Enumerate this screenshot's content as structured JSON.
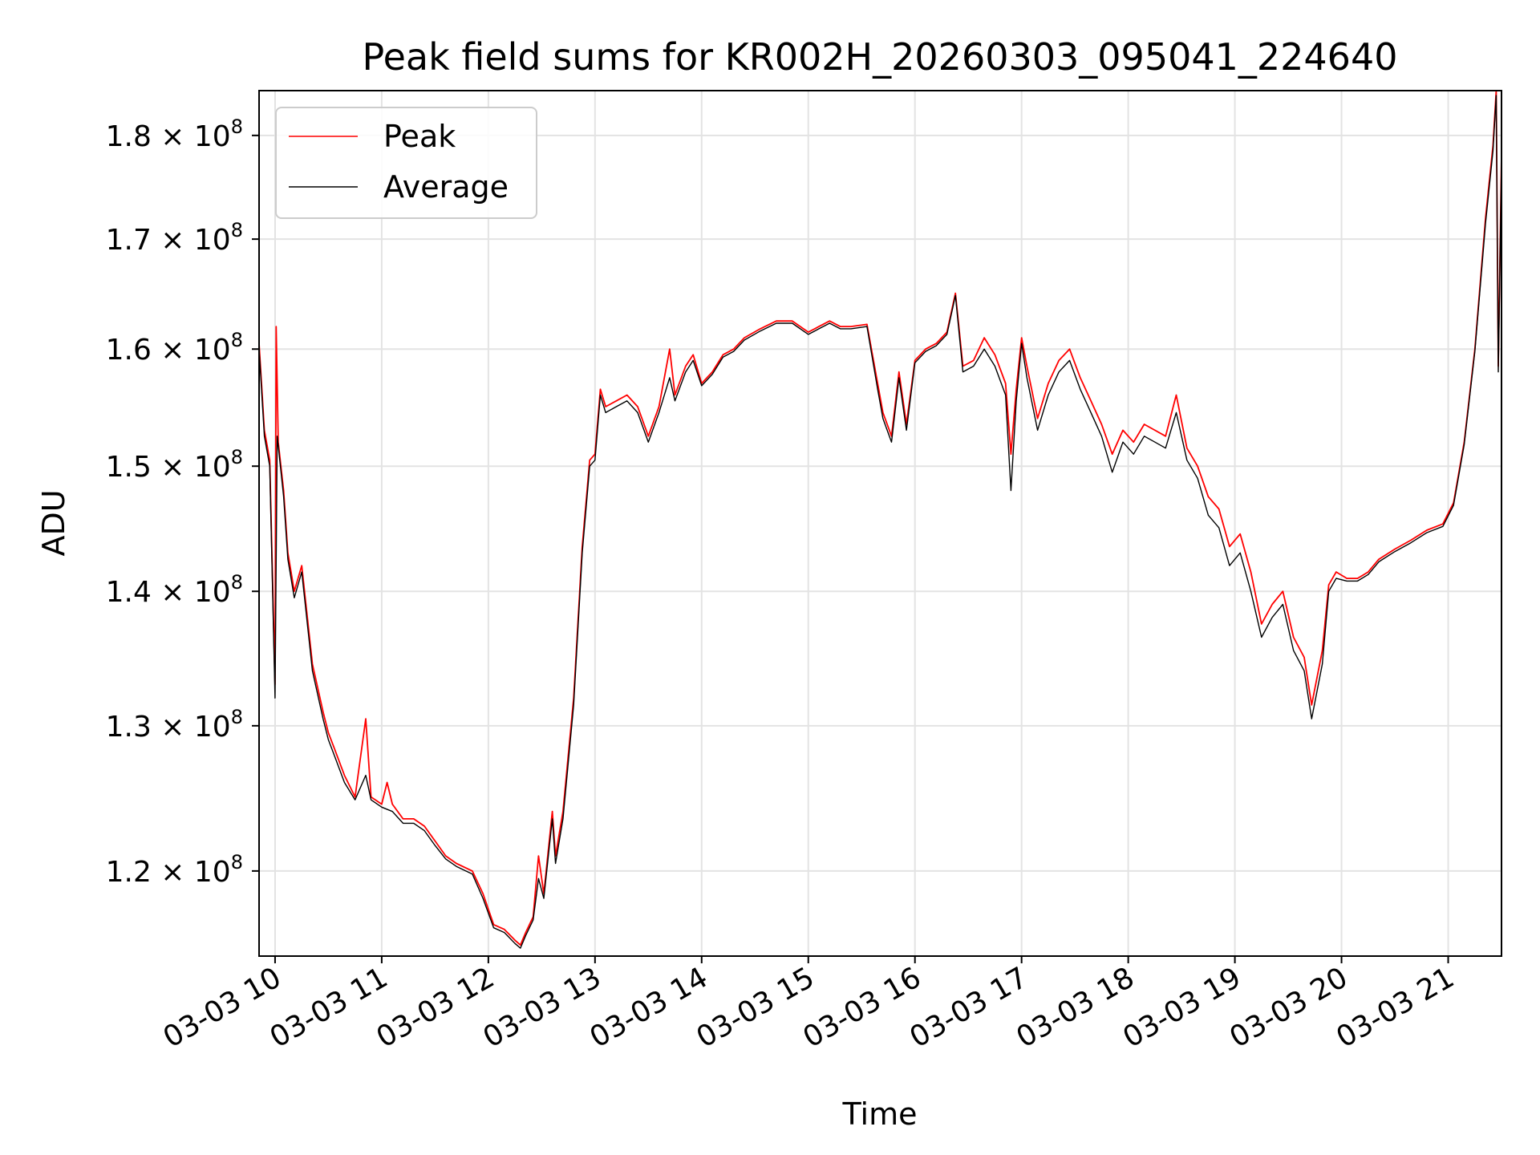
{
  "chart_data": {
    "type": "line",
    "title": "Peak field sums for KR002H_20260303_095041_224640",
    "xlabel": "Time",
    "ylabel": "ADU",
    "x_unit": "hours",
    "xlim": [
      9.85,
      21.5
    ],
    "ylim": [
      114500000,
      184500000
    ],
    "scale": "log",
    "grid": true,
    "legend_position": "upper-left",
    "x_ticks": [
      {
        "value": 10,
        "label": "03-03 10"
      },
      {
        "value": 11,
        "label": "03-03 11"
      },
      {
        "value": 12,
        "label": "03-03 12"
      },
      {
        "value": 13,
        "label": "03-03 13"
      },
      {
        "value": 14,
        "label": "03-03 14"
      },
      {
        "value": 15,
        "label": "03-03 15"
      },
      {
        "value": 16,
        "label": "03-03 16"
      },
      {
        "value": 17,
        "label": "03-03 17"
      },
      {
        "value": 18,
        "label": "03-03 18"
      },
      {
        "value": 19,
        "label": "03-03 19"
      },
      {
        "value": 20,
        "label": "03-03 20"
      },
      {
        "value": 21,
        "label": "03-03 21"
      }
    ],
    "y_ticks": [
      {
        "value": 120000000,
        "mantissa": "1.2",
        "base": "10",
        "exp": "8"
      },
      {
        "value": 130000000,
        "mantissa": "1.3",
        "base": "10",
        "exp": "8"
      },
      {
        "value": 140000000,
        "mantissa": "1.4",
        "base": "10",
        "exp": "8"
      },
      {
        "value": 150000000,
        "mantissa": "1.5",
        "base": "10",
        "exp": "8"
      },
      {
        "value": 160000000,
        "mantissa": "1.6",
        "base": "10",
        "exp": "8"
      },
      {
        "value": 170000000,
        "mantissa": "1.7",
        "base": "10",
        "exp": "8"
      },
      {
        "value": 180000000,
        "mantissa": "1.8",
        "base": "10",
        "exp": "8"
      }
    ],
    "series": [
      {
        "name": "Peak",
        "color": "#ff0000",
        "points": [
          [
            9.85,
            160.5
          ],
          [
            9.9,
            153.0
          ],
          [
            9.95,
            150.5
          ],
          [
            10.0,
            133.0
          ],
          [
            10.01,
            162.0
          ],
          [
            10.03,
            152.0
          ],
          [
            10.08,
            148.0
          ],
          [
            10.12,
            143.0
          ],
          [
            10.18,
            140.0
          ],
          [
            10.25,
            142.0
          ],
          [
            10.35,
            134.5
          ],
          [
            10.45,
            131.0
          ],
          [
            10.5,
            129.5
          ],
          [
            10.55,
            128.5
          ],
          [
            10.65,
            126.5
          ],
          [
            10.75,
            125.0
          ],
          [
            10.85,
            130.5
          ],
          [
            10.9,
            125.0
          ],
          [
            11.0,
            124.5
          ],
          [
            11.05,
            126.0
          ],
          [
            11.1,
            124.5
          ],
          [
            11.2,
            123.5
          ],
          [
            11.3,
            123.5
          ],
          [
            11.4,
            123.0
          ],
          [
            11.5,
            122.0
          ],
          [
            11.6,
            121.0
          ],
          [
            11.7,
            120.5
          ],
          [
            11.85,
            120.0
          ],
          [
            11.95,
            118.5
          ],
          [
            12.05,
            116.5
          ],
          [
            12.15,
            116.2
          ],
          [
            12.25,
            115.5
          ],
          [
            12.3,
            115.2
          ],
          [
            12.35,
            116.0
          ],
          [
            12.42,
            117.0
          ],
          [
            12.47,
            121.0
          ],
          [
            12.52,
            118.5
          ],
          [
            12.6,
            124.0
          ],
          [
            12.63,
            121.0
          ],
          [
            12.7,
            124.0
          ],
          [
            12.8,
            132.0
          ],
          [
            12.88,
            143.5
          ],
          [
            12.95,
            150.5
          ],
          [
            13.0,
            151.0
          ],
          [
            13.05,
            156.5
          ],
          [
            13.1,
            155.0
          ],
          [
            13.2,
            155.5
          ],
          [
            13.3,
            156.0
          ],
          [
            13.4,
            155.0
          ],
          [
            13.5,
            152.5
          ],
          [
            13.6,
            155.0
          ],
          [
            13.7,
            160.0
          ],
          [
            13.75,
            156.0
          ],
          [
            13.85,
            158.5
          ],
          [
            13.92,
            159.5
          ],
          [
            14.0,
            157.0
          ],
          [
            14.1,
            158.0
          ],
          [
            14.2,
            159.5
          ],
          [
            14.3,
            160.0
          ],
          [
            14.4,
            161.0
          ],
          [
            14.55,
            161.8
          ],
          [
            14.7,
            162.5
          ],
          [
            14.85,
            162.5
          ],
          [
            15.0,
            161.5
          ],
          [
            15.1,
            162.0
          ],
          [
            15.2,
            162.5
          ],
          [
            15.3,
            162.0
          ],
          [
            15.4,
            162.0
          ],
          [
            15.55,
            162.2
          ],
          [
            15.65,
            157.0
          ],
          [
            15.7,
            154.5
          ],
          [
            15.78,
            152.5
          ],
          [
            15.85,
            158.0
          ],
          [
            15.92,
            153.5
          ],
          [
            16.0,
            159.0
          ],
          [
            16.1,
            160.0
          ],
          [
            16.2,
            160.5
          ],
          [
            16.3,
            161.5
          ],
          [
            16.38,
            165.0
          ],
          [
            16.45,
            158.5
          ],
          [
            16.55,
            159.0
          ],
          [
            16.65,
            161.0
          ],
          [
            16.75,
            159.5
          ],
          [
            16.85,
            157.0
          ],
          [
            16.9,
            151.0
          ],
          [
            16.95,
            156.5
          ],
          [
            17.0,
            161.0
          ],
          [
            17.05,
            158.5
          ],
          [
            17.15,
            154.0
          ],
          [
            17.25,
            157.0
          ],
          [
            17.35,
            159.0
          ],
          [
            17.45,
            160.0
          ],
          [
            17.55,
            157.5
          ],
          [
            17.65,
            155.5
          ],
          [
            17.75,
            153.5
          ],
          [
            17.85,
            151.0
          ],
          [
            17.95,
            153.0
          ],
          [
            18.05,
            152.0
          ],
          [
            18.15,
            153.5
          ],
          [
            18.25,
            153.0
          ],
          [
            18.35,
            152.5
          ],
          [
            18.45,
            156.0
          ],
          [
            18.55,
            151.5
          ],
          [
            18.65,
            150.0
          ],
          [
            18.75,
            147.5
          ],
          [
            18.85,
            146.5
          ],
          [
            18.95,
            143.5
          ],
          [
            19.05,
            144.5
          ],
          [
            19.15,
            141.5
          ],
          [
            19.25,
            137.5
          ],
          [
            19.35,
            139.0
          ],
          [
            19.45,
            140.0
          ],
          [
            19.55,
            136.5
          ],
          [
            19.65,
            135.0
          ],
          [
            19.72,
            131.5
          ],
          [
            19.82,
            135.5
          ],
          [
            19.88,
            140.5
          ],
          [
            19.95,
            141.5
          ],
          [
            20.05,
            141.0
          ],
          [
            20.15,
            141.0
          ],
          [
            20.25,
            141.5
          ],
          [
            20.35,
            142.5
          ],
          [
            20.5,
            143.3
          ],
          [
            20.65,
            144.0
          ],
          [
            20.8,
            144.8
          ],
          [
            20.95,
            145.3
          ],
          [
            21.05,
            147.0
          ],
          [
            21.15,
            152.0
          ],
          [
            21.25,
            160.0
          ],
          [
            21.35,
            172.0
          ],
          [
            21.42,
            179.0
          ],
          [
            21.45,
            184.5
          ],
          [
            21.47,
            158.5
          ],
          [
            21.5,
            178.0
          ]
        ]
      },
      {
        "name": "Average",
        "color": "#000000",
        "points": [
          [
            9.85,
            160.0
          ],
          [
            9.9,
            152.5
          ],
          [
            9.95,
            150.0
          ],
          [
            10.0,
            132.0
          ],
          [
            10.02,
            152.5
          ],
          [
            10.08,
            147.5
          ],
          [
            10.12,
            142.5
          ],
          [
            10.18,
            139.5
          ],
          [
            10.25,
            141.5
          ],
          [
            10.35,
            134.0
          ],
          [
            10.45,
            130.5
          ],
          [
            10.5,
            129.0
          ],
          [
            10.55,
            128.0
          ],
          [
            10.65,
            126.0
          ],
          [
            10.75,
            124.8
          ],
          [
            10.85,
            126.5
          ],
          [
            10.9,
            124.8
          ],
          [
            11.0,
            124.3
          ],
          [
            11.1,
            124.0
          ],
          [
            11.2,
            123.2
          ],
          [
            11.3,
            123.2
          ],
          [
            11.4,
            122.7
          ],
          [
            11.5,
            121.7
          ],
          [
            11.6,
            120.8
          ],
          [
            11.7,
            120.3
          ],
          [
            11.85,
            119.8
          ],
          [
            11.95,
            118.2
          ],
          [
            12.05,
            116.3
          ],
          [
            12.15,
            116.0
          ],
          [
            12.25,
            115.3
          ],
          [
            12.3,
            115.0
          ],
          [
            12.35,
            115.8
          ],
          [
            12.42,
            116.8
          ],
          [
            12.47,
            119.5
          ],
          [
            12.52,
            118.2
          ],
          [
            12.6,
            123.5
          ],
          [
            12.63,
            120.5
          ],
          [
            12.7,
            123.5
          ],
          [
            12.8,
            131.5
          ],
          [
            12.88,
            143.0
          ],
          [
            12.95,
            150.0
          ],
          [
            13.0,
            150.5
          ],
          [
            13.05,
            156.0
          ],
          [
            13.1,
            154.5
          ],
          [
            13.2,
            155.0
          ],
          [
            13.3,
            155.5
          ],
          [
            13.4,
            154.5
          ],
          [
            13.5,
            152.0
          ],
          [
            13.6,
            154.5
          ],
          [
            13.7,
            157.5
          ],
          [
            13.75,
            155.5
          ],
          [
            13.85,
            158.0
          ],
          [
            13.92,
            159.0
          ],
          [
            14.0,
            156.8
          ],
          [
            14.1,
            157.8
          ],
          [
            14.2,
            159.3
          ],
          [
            14.3,
            159.8
          ],
          [
            14.4,
            160.8
          ],
          [
            14.55,
            161.6
          ],
          [
            14.7,
            162.3
          ],
          [
            14.85,
            162.3
          ],
          [
            15.0,
            161.3
          ],
          [
            15.1,
            161.8
          ],
          [
            15.2,
            162.3
          ],
          [
            15.3,
            161.8
          ],
          [
            15.4,
            161.8
          ],
          [
            15.55,
            162.0
          ],
          [
            15.65,
            156.5
          ],
          [
            15.7,
            154.0
          ],
          [
            15.78,
            152.0
          ],
          [
            15.85,
            157.5
          ],
          [
            15.92,
            153.0
          ],
          [
            16.0,
            158.8
          ],
          [
            16.1,
            159.8
          ],
          [
            16.2,
            160.3
          ],
          [
            16.3,
            161.3
          ],
          [
            16.38,
            164.8
          ],
          [
            16.45,
            158.0
          ],
          [
            16.55,
            158.5
          ],
          [
            16.65,
            160.0
          ],
          [
            16.75,
            158.5
          ],
          [
            16.85,
            156.0
          ],
          [
            16.9,
            148.0
          ],
          [
            16.95,
            155.5
          ],
          [
            17.0,
            160.5
          ],
          [
            17.05,
            157.5
          ],
          [
            17.15,
            153.0
          ],
          [
            17.25,
            156.0
          ],
          [
            17.35,
            158.0
          ],
          [
            17.45,
            159.0
          ],
          [
            17.55,
            156.5
          ],
          [
            17.65,
            154.5
          ],
          [
            17.75,
            152.5
          ],
          [
            17.85,
            149.5
          ],
          [
            17.95,
            152.0
          ],
          [
            18.05,
            151.0
          ],
          [
            18.15,
            152.5
          ],
          [
            18.25,
            152.0
          ],
          [
            18.35,
            151.5
          ],
          [
            18.45,
            154.5
          ],
          [
            18.55,
            150.5
          ],
          [
            18.65,
            149.0
          ],
          [
            18.75,
            146.0
          ],
          [
            18.85,
            145.0
          ],
          [
            18.95,
            142.0
          ],
          [
            19.05,
            143.0
          ],
          [
            19.15,
            140.0
          ],
          [
            19.25,
            136.5
          ],
          [
            19.35,
            138.0
          ],
          [
            19.45,
            139.0
          ],
          [
            19.55,
            135.5
          ],
          [
            19.65,
            134.0
          ],
          [
            19.72,
            130.5
          ],
          [
            19.82,
            134.5
          ],
          [
            19.88,
            140.0
          ],
          [
            19.95,
            141.0
          ],
          [
            20.05,
            140.8
          ],
          [
            20.15,
            140.8
          ],
          [
            20.25,
            141.3
          ],
          [
            20.35,
            142.3
          ],
          [
            20.5,
            143.1
          ],
          [
            20.65,
            143.8
          ],
          [
            20.8,
            144.6
          ],
          [
            20.95,
            145.1
          ],
          [
            21.05,
            146.8
          ],
          [
            21.15,
            151.8
          ],
          [
            21.25,
            159.8
          ],
          [
            21.35,
            171.5
          ],
          [
            21.42,
            178.5
          ],
          [
            21.45,
            184.0
          ],
          [
            21.47,
            158.0
          ],
          [
            21.5,
            177.5
          ]
        ]
      }
    ]
  }
}
